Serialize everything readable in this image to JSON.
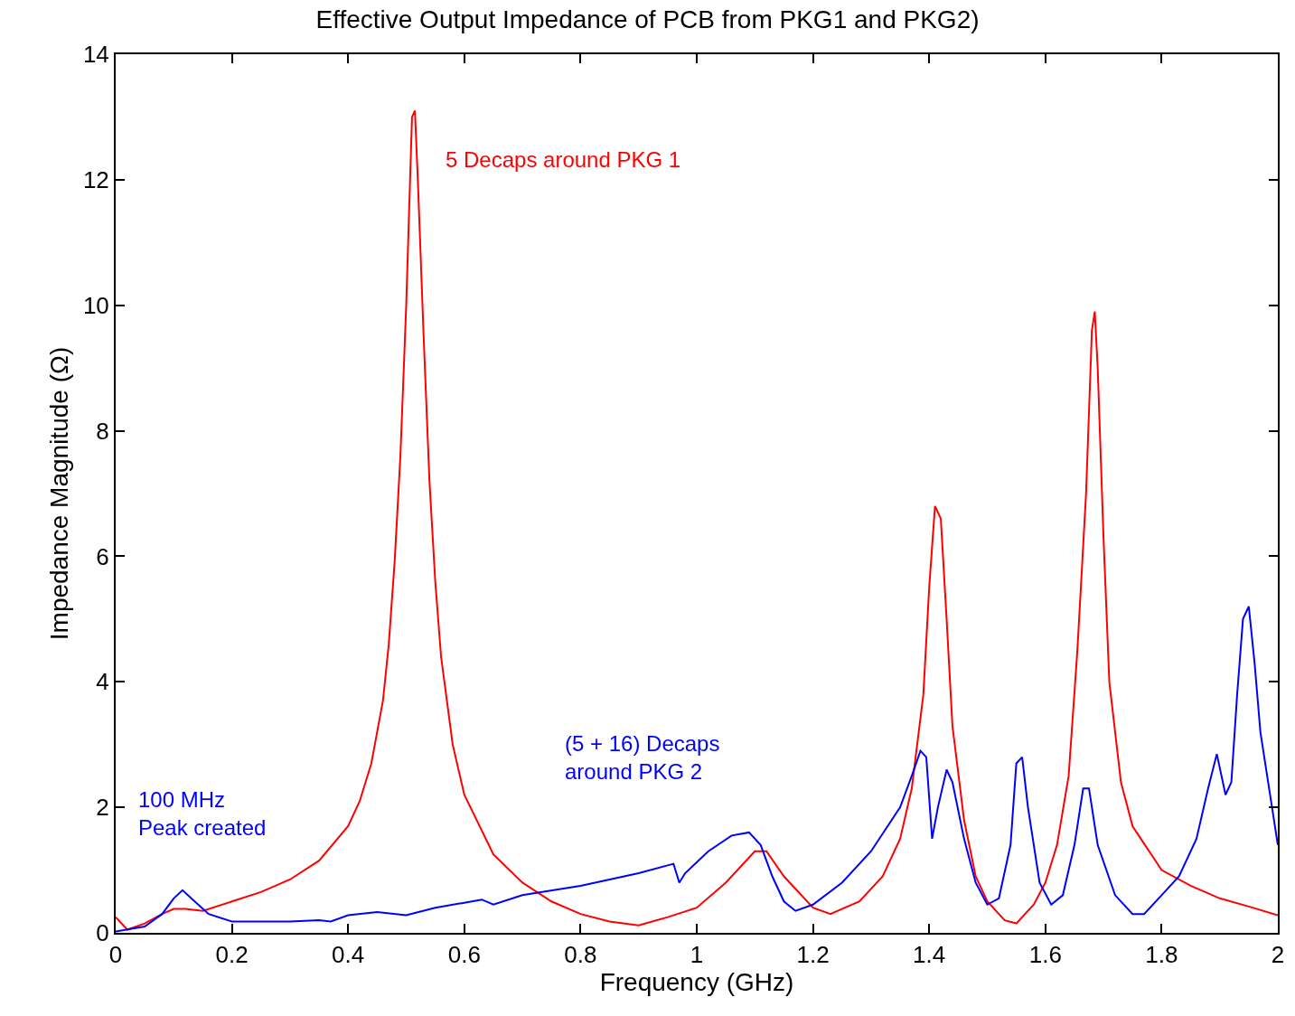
{
  "chart_data": {
    "type": "line",
    "title": "Effective Output Impedance of PCB from PKG1 and PKG2)",
    "xlabel": "Frequency (GHz)",
    "ylabel": "Impedance Magnitude (Ω)",
    "xlim": [
      0,
      2
    ],
    "ylim": [
      0,
      14
    ],
    "xticks": [
      0,
      0.2,
      0.4,
      0.6,
      0.8,
      1,
      1.2,
      1.4,
      1.6,
      1.8,
      2
    ],
    "yticks": [
      0,
      2,
      4,
      6,
      8,
      10,
      12,
      14
    ],
    "marker": "none",
    "line_style": "solid",
    "x": [
      0,
      0.02,
      0.05,
      0.08,
      0.1,
      0.12,
      0.15,
      0.2,
      0.25,
      0.3,
      0.35,
      0.4,
      0.42,
      0.44,
      0.46,
      0.47,
      0.48,
      0.49,
      0.5,
      0.51,
      0.515,
      0.52,
      0.53,
      0.54,
      0.55,
      0.56,
      0.58,
      0.6,
      0.65,
      0.7,
      0.75,
      0.8,
      0.85,
      0.9,
      0.95,
      1.0,
      1.05,
      1.1,
      1.12,
      1.15,
      1.2,
      1.23,
      1.28,
      1.32,
      1.35,
      1.37,
      1.39,
      1.4,
      1.41,
      1.42,
      1.43,
      1.44,
      1.46,
      1.48,
      1.5,
      1.53,
      1.55,
      1.58,
      1.6,
      1.62,
      1.64,
      1.655,
      1.67,
      1.68,
      1.685,
      1.69,
      1.7,
      1.71,
      1.73,
      1.75,
      1.8,
      1.85,
      1.9,
      1.95,
      2.0
    ],
    "series": [
      {
        "color": "#ff0000",
        "values": [
          0.25,
          0.05,
          0.15,
          0.3,
          0.38,
          0.38,
          0.35,
          0.5,
          0.65,
          0.85,
          1.15,
          1.7,
          2.1,
          2.7,
          3.7,
          4.6,
          5.9,
          7.6,
          10,
          13,
          13.1,
          12.0,
          9.5,
          7.2,
          5.6,
          4.4,
          3.0,
          2.2,
          1.25,
          0.8,
          0.5,
          0.3,
          0.18,
          0.12,
          0.25,
          0.4,
          0.8,
          1.3,
          1.3,
          0.9,
          0.4,
          0.3,
          0.5,
          0.9,
          1.5,
          2.3,
          3.8,
          5.5,
          6.8,
          6.6,
          5.0,
          3.3,
          1.8,
          0.9,
          0.5,
          0.2,
          0.15,
          0.45,
          0.8,
          1.4,
          2.5,
          4.5,
          7.0,
          9.6,
          9.9,
          9.0,
          6.3,
          4.0,
          2.4,
          1.7,
          1.0,
          0.75,
          0.55,
          0.42,
          0.28
        ]
      },
      {
        "color": "#0000ff",
        "x": [
          0,
          0.05,
          0.08,
          0.1,
          0.115,
          0.13,
          0.16,
          0.2,
          0.3,
          0.35,
          0.37,
          0.4,
          0.45,
          0.5,
          0.55,
          0.6,
          0.63,
          0.65,
          0.7,
          0.8,
          0.9,
          0.96,
          0.97,
          0.98,
          1.02,
          1.06,
          1.09,
          1.11,
          1.13,
          1.15,
          1.17,
          1.2,
          1.25,
          1.3,
          1.35,
          1.37,
          1.385,
          1.395,
          1.405,
          1.415,
          1.43,
          1.44,
          1.46,
          1.48,
          1.5,
          1.52,
          1.54,
          1.55,
          1.56,
          1.57,
          1.59,
          1.61,
          1.63,
          1.65,
          1.665,
          1.675,
          1.69,
          1.72,
          1.75,
          1.77,
          1.8,
          1.83,
          1.86,
          1.88,
          1.895,
          1.91,
          1.92,
          1.93,
          1.94,
          1.95,
          1.96,
          1.97,
          1.99,
          2.0
        ],
        "values": [
          0.02,
          0.1,
          0.3,
          0.55,
          0.68,
          0.55,
          0.3,
          0.18,
          0.18,
          0.2,
          0.18,
          0.28,
          0.33,
          0.28,
          0.4,
          0.48,
          0.53,
          0.45,
          0.6,
          0.75,
          0.95,
          1.1,
          0.8,
          0.95,
          1.3,
          1.55,
          1.6,
          1.4,
          0.9,
          0.5,
          0.35,
          0.45,
          0.8,
          1.3,
          2.0,
          2.5,
          2.9,
          2.8,
          1.5,
          2.0,
          2.6,
          2.4,
          1.5,
          0.8,
          0.45,
          0.55,
          1.4,
          2.7,
          2.8,
          2.0,
          0.8,
          0.45,
          0.6,
          1.4,
          2.3,
          2.3,
          1.4,
          0.6,
          0.3,
          0.3,
          0.6,
          0.9,
          1.5,
          2.3,
          2.85,
          2.2,
          2.4,
          3.8,
          5.0,
          5.2,
          4.3,
          3.2,
          2.0,
          1.4
        ]
      }
    ],
    "annotations": [
      "5 Decaps around PKG 1",
      "(5 + 16) Decaps\naround PKG 2",
      "100 MHz\nPeak created"
    ]
  }
}
